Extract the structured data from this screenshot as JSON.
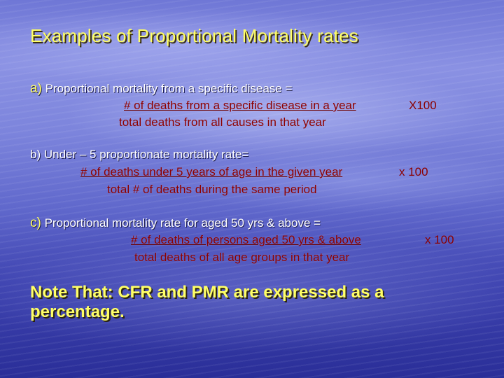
{
  "slide": {
    "title": "Examples of Proportional Mortality rates",
    "items": [
      {
        "marker": "a)",
        "text": "Proportional mortality from a specific disease =",
        "numerator": "# of deaths from a specific disease in a year",
        "denominator": "total deaths from all causes in that year",
        "multiplier": "X100"
      },
      {
        "marker": "b)",
        "text": "Under – 5 proportionate mortality rate=",
        "numerator": "# of deaths under 5 years of age in the given year",
        "denominator": "total # of deaths during the same period",
        "multiplier": "x 100"
      },
      {
        "marker": "c)",
        "text": "Proportional mortality rate for aged 50 yrs & above =",
        "numerator": "# of deaths of persons aged 50 yrs & above",
        "denominator": "total deaths of all age groups in that year",
        "multiplier": "x 100"
      }
    ],
    "note": "Note That: CFR and PMR are expressed as a percentage."
  },
  "colors": {
    "title": "#ffff66",
    "body_text": "#ffffff",
    "formula_text": "#8b0000",
    "background": "#6068cc"
  }
}
